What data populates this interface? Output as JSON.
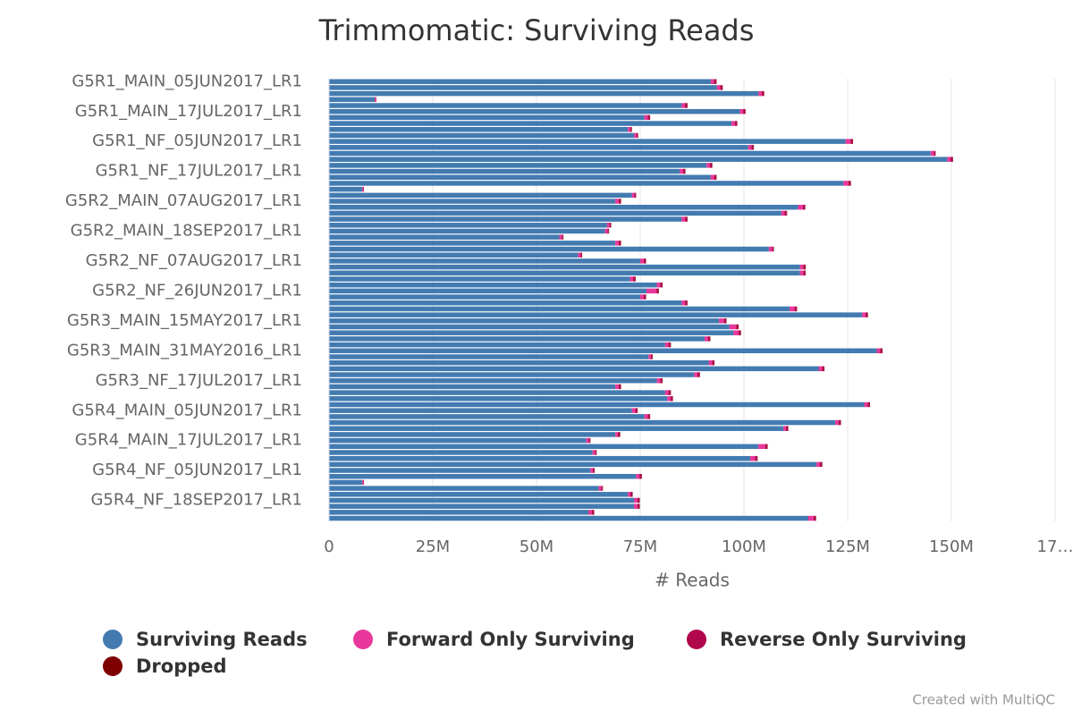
{
  "chart_data": {
    "type": "stacked_bar_horizontal",
    "title": "Trimmomatic: Surviving Reads",
    "x_label": "# Reads",
    "credit": "Created with MultiQC",
    "categories": [
      "G5R1_MAIN_05JUN2017_LR1",
      null,
      null,
      null,
      null,
      "G5R1_MAIN_17JUL2017_LR1",
      null,
      null,
      null,
      null,
      "G5R1_NF_05JUN2017_LR1",
      null,
      null,
      null,
      null,
      "G5R1_NF_17JUL2017_LR1",
      null,
      null,
      null,
      null,
      "G5R2_MAIN_07AUG2017_LR1",
      null,
      null,
      null,
      null,
      "G5R2_MAIN_18SEP2017_LR1",
      null,
      null,
      null,
      null,
      "G5R2_NF_07AUG2017_LR1",
      null,
      null,
      null,
      null,
      "G5R2_NF_26JUN2017_LR1",
      null,
      null,
      null,
      null,
      "G5R3_MAIN_15MAY2017_LR1",
      null,
      null,
      null,
      null,
      "G5R3_MAIN_31MAY2016_LR1",
      null,
      null,
      null,
      null,
      "G5R3_NF_17JUL2017_LR1",
      null,
      null,
      null,
      null,
      "G5R4_MAIN_05JUN2017_LR1",
      null,
      null,
      null,
      null,
      "G5R4_MAIN_17JUL2017_LR1",
      null,
      null,
      null,
      null,
      "G5R4_NF_05JUN2017_LR1",
      null,
      null,
      null,
      null,
      "G5R4_NF_18SEP2017_LR1",
      null,
      null,
      null
    ],
    "series": [
      {
        "name": "Surviving Reads",
        "color": "#437bb1",
        "values": [
          92000000,
          93500000,
          103500000,
          11000000,
          85000000,
          99000000,
          76000000,
          97000000,
          72000000,
          73500000,
          124500000,
          101000000,
          145000000,
          149000000,
          91000000,
          84500000,
          92000000,
          124000000,
          8000000,
          73000000,
          69000000,
          113000000,
          109000000,
          85000000,
          67000000,
          66500000,
          55500000,
          69000000,
          106000000,
          60000000,
          75000000,
          113500000,
          113500000,
          72500000,
          79000000,
          76500000,
          75000000,
          85000000,
          111000000,
          128500000,
          94000000,
          96500000,
          97500000,
          90500000,
          81000000,
          132000000,
          77000000,
          91500000,
          118000000,
          88000000,
          79000000,
          69000000,
          81000000,
          81500000,
          129000000,
          73000000,
          76000000,
          122000000,
          109500000,
          69000000,
          62000000,
          103500000,
          63500000,
          101500000,
          117500000,
          63000000,
          74000000,
          8000000,
          65000000,
          72000000,
          73500000,
          73500000,
          62500000,
          115500000
        ]
      },
      {
        "name": "Forward Only Surviving",
        "color": "#e8389b",
        "values": [
          800000,
          800000,
          800000,
          300000,
          800000,
          800000,
          800000,
          800000,
          600000,
          600000,
          1200000,
          800000,
          800000,
          800000,
          800000,
          800000,
          800000,
          1200000,
          300000,
          600000,
          800000,
          1200000,
          800000,
          800000,
          600000,
          600000,
          600000,
          800000,
          800000,
          600000,
          800000,
          800000,
          800000,
          800000,
          800000,
          2400000,
          800000,
          800000,
          1200000,
          800000,
          1200000,
          1600000,
          1200000,
          800000,
          800000,
          800000,
          600000,
          800000,
          800000,
          800000,
          800000,
          800000,
          800000,
          800000,
          800000,
          800000,
          800000,
          800000,
          600000,
          600000,
          600000,
          1600000,
          600000,
          1200000,
          800000,
          600000,
          800000,
          300000,
          600000,
          600000,
          800000,
          800000,
          800000,
          1300000
        ]
      },
      {
        "name": "Reverse Only Surviving",
        "color": "#b1084c",
        "values": [
          500000,
          500000,
          500000,
          100000,
          500000,
          500000,
          500000,
          500000,
          300000,
          300000,
          500000,
          500000,
          300000,
          500000,
          500000,
          500000,
          500000,
          500000,
          100000,
          300000,
          500000,
          500000,
          500000,
          500000,
          300000,
          300000,
          300000,
          500000,
          300000,
          300000,
          500000,
          500000,
          500000,
          500000,
          500000,
          500000,
          500000,
          500000,
          500000,
          500000,
          500000,
          500000,
          500000,
          500000,
          500000,
          500000,
          300000,
          500000,
          500000,
          500000,
          500000,
          500000,
          500000,
          500000,
          500000,
          500000,
          500000,
          500000,
          500000,
          500000,
          300000,
          500000,
          300000,
          500000,
          500000,
          300000,
          500000,
          100000,
          300000,
          500000,
          500000,
          500000,
          500000,
          500000
        ]
      },
      {
        "name": "Dropped",
        "color": "#7f0000",
        "values": [
          100000,
          100000,
          100000,
          20000,
          100000,
          100000,
          100000,
          100000,
          100000,
          100000,
          100000,
          100000,
          100000,
          100000,
          100000,
          100000,
          100000,
          100000,
          20000,
          100000,
          100000,
          100000,
          100000,
          100000,
          100000,
          100000,
          100000,
          100000,
          100000,
          100000,
          100000,
          100000,
          100000,
          100000,
          100000,
          100000,
          100000,
          100000,
          100000,
          100000,
          100000,
          100000,
          100000,
          100000,
          100000,
          100000,
          100000,
          100000,
          100000,
          100000,
          100000,
          100000,
          100000,
          100000,
          100000,
          100000,
          100000,
          100000,
          100000,
          100000,
          100000,
          100000,
          100000,
          100000,
          100000,
          100000,
          100000,
          20000,
          100000,
          100000,
          100000,
          100000,
          100000,
          100000
        ]
      }
    ],
    "xlim": [
      0,
      175000000
    ],
    "xticks": [
      0,
      {
        "value": 25000000,
        "label": "25M"
      },
      {
        "value": 50000000,
        "label": "50M"
      },
      {
        "value": 75000000,
        "label": "75M"
      },
      {
        "value": 100000000,
        "label": "100M"
      },
      {
        "value": 125000000,
        "label": "125M"
      },
      {
        "value": 150000000,
        "label": "150M"
      },
      {
        "value": 175000000,
        "label": "17…"
      }
    ],
    "grid": true
  }
}
